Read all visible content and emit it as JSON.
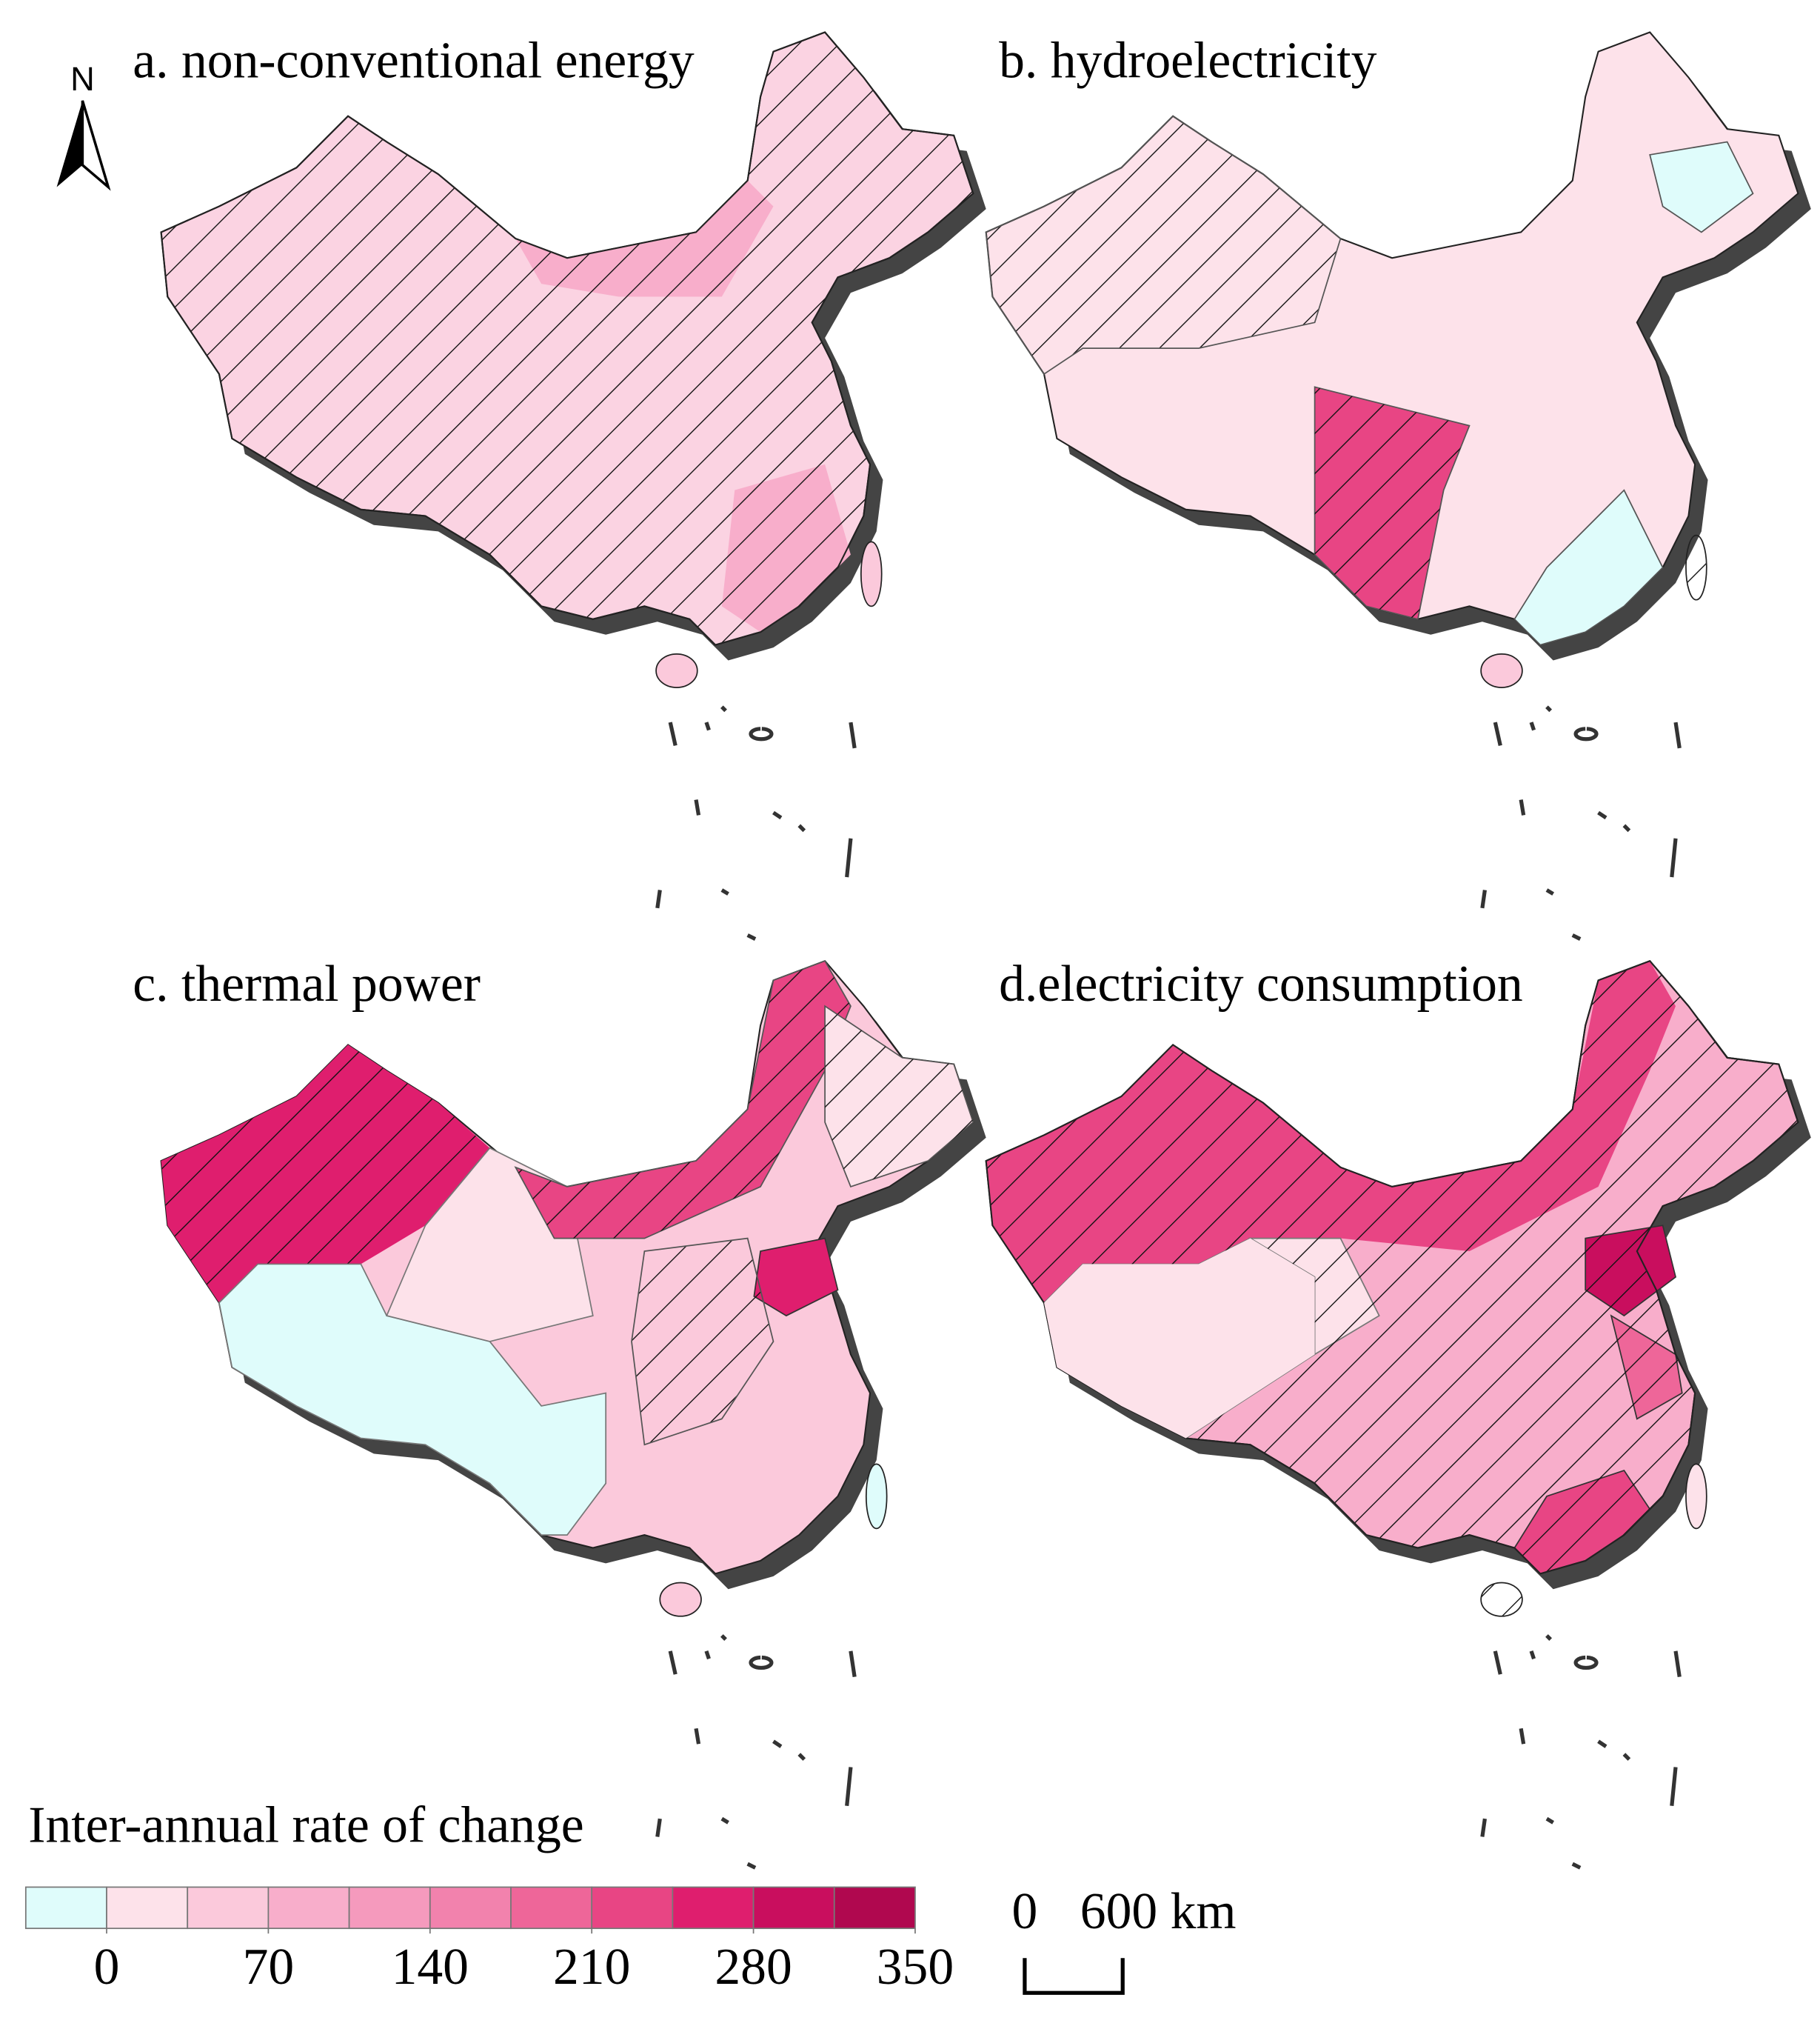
{
  "north_label": "N",
  "panels": [
    {
      "title": "a. non-conventional energy"
    },
    {
      "title": "b. hydroelectricity"
    },
    {
      "title": "c. thermal power"
    },
    {
      "title": "d.electricity consumption"
    }
  ],
  "legend": {
    "title": "Inter-annual rate of change",
    "range": [
      -35,
      350
    ],
    "ticks": [
      0,
      70,
      140,
      210,
      280,
      350
    ],
    "colors": [
      "#dffcfb",
      "#fde2ea",
      "#fbc9db",
      "#f8aecb",
      "#f59abd",
      "#f282ad",
      "#ee6699",
      "#e84584",
      "#df1e6e",
      "#c90e5e",
      "#b0084f"
    ]
  },
  "scale_bar": {
    "start_label": "0",
    "end_label": "600 km"
  }
}
